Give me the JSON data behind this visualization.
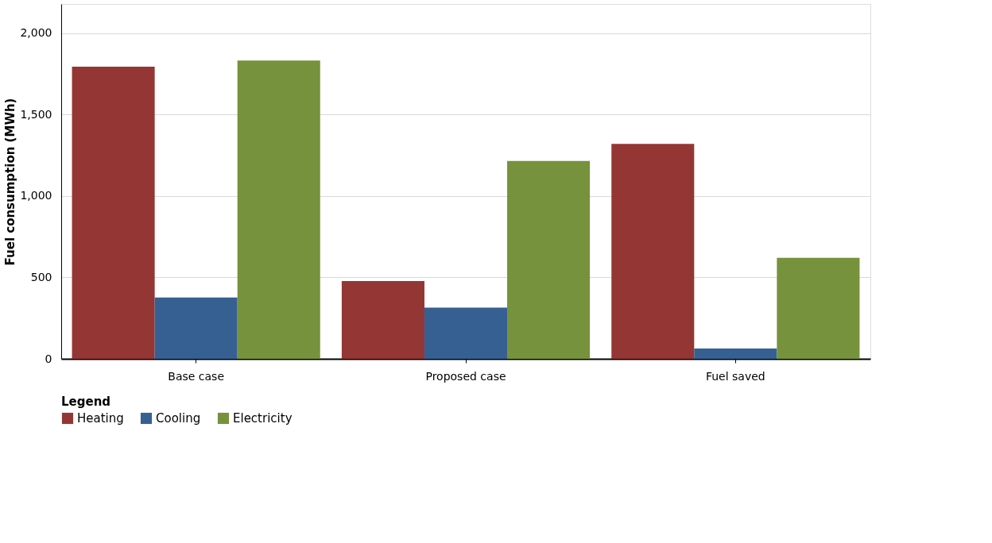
{
  "chart_data": {
    "type": "bar",
    "ylabel": "Fuel consumption (MWh)",
    "legend_title": "Legend",
    "categories": [
      "Base case",
      "Proposed case",
      "Fuel saved"
    ],
    "series": [
      {
        "name": "Heating",
        "color": "#943634",
        "values": [
          1795,
          478,
          1321
        ]
      },
      {
        "name": "Cooling",
        "color": "#366092",
        "values": [
          377,
          314,
          63
        ]
      },
      {
        "name": "Electricity",
        "color": "#76923c",
        "values": [
          1832,
          1216,
          620
        ]
      }
    ],
    "ylim": [
      0,
      2180
    ],
    "yticks": [
      {
        "value": 0,
        "label": "0"
      },
      {
        "value": 500,
        "label": "500"
      },
      {
        "value": 1000,
        "label": "1,000"
      },
      {
        "value": 1500,
        "label": "1,500"
      },
      {
        "value": 2000,
        "label": "2,000"
      }
    ],
    "grid": "y",
    "legend": "bottom"
  }
}
